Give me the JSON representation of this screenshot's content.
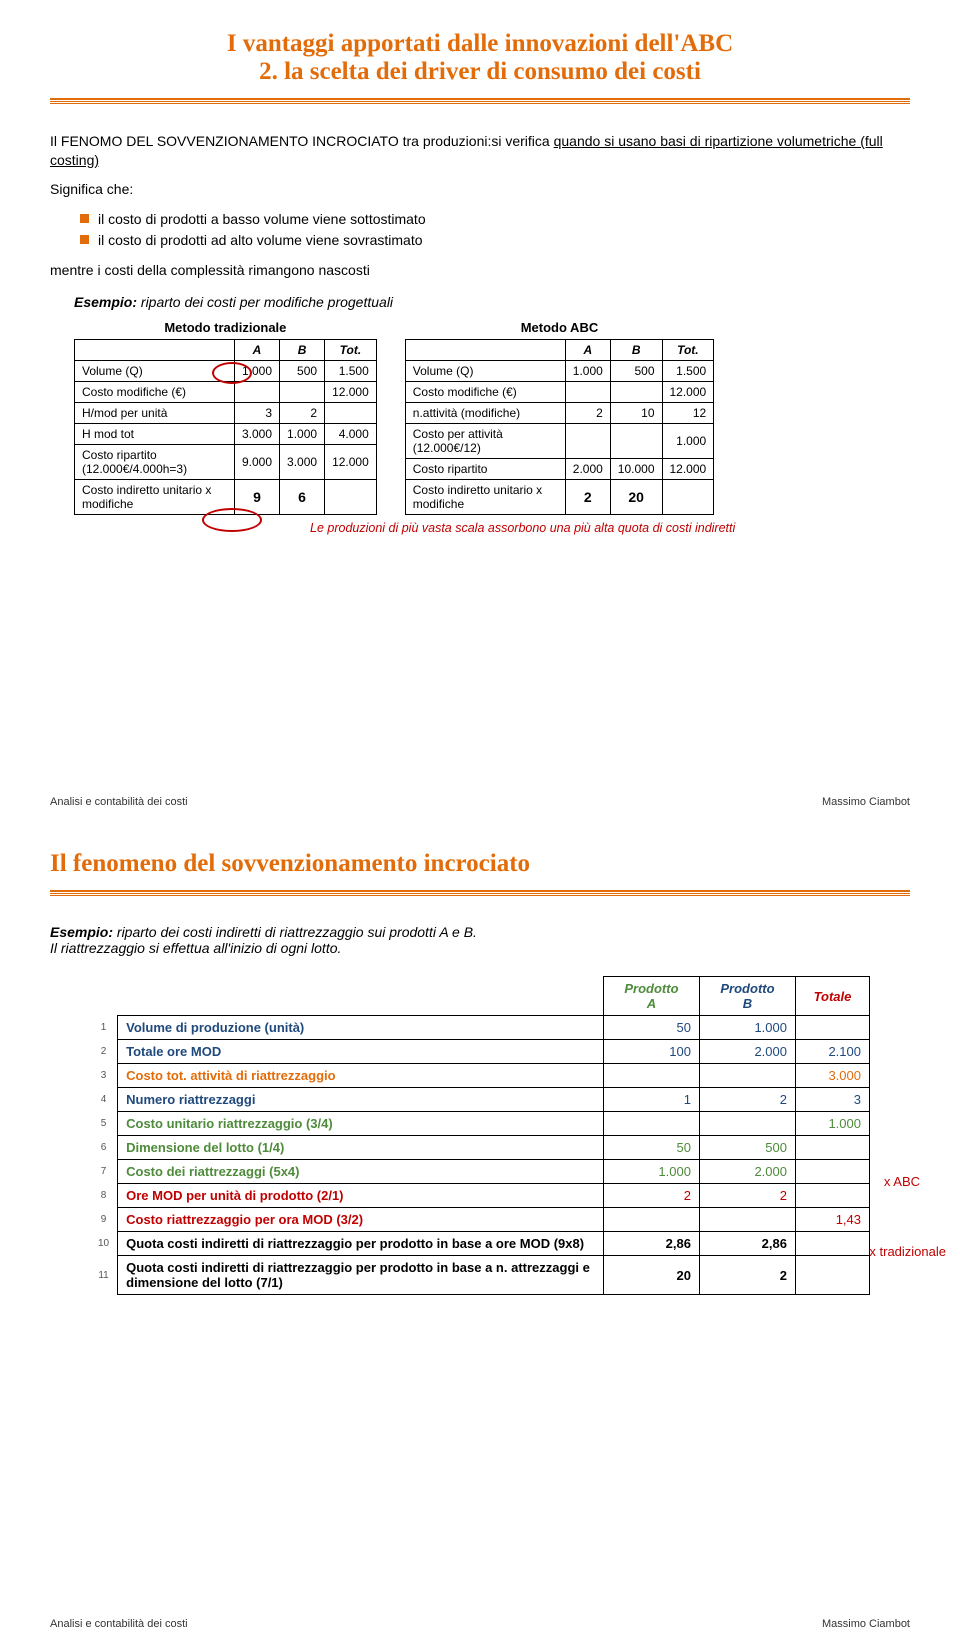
{
  "slide1": {
    "title_l1": "I vantaggi apportati dalle innovazioni dell'ABC",
    "title_l2": "2. la scelta dei driver di consumo dei costi",
    "intro_pre": "Il FENOMO DEL SOVVENZIONAMENTO INCROCIATO tra produzioni:si verifica ",
    "intro_underlined": "quando si usano basi di ripartizione volumetriche (full costing)",
    "significa": "Significa che:",
    "bullet1": "il costo di prodotti a basso volume viene sottostimato",
    "bullet2": "il costo di prodotti ad alto volume viene sovrastimato",
    "mentre": "mentre i costi della complessità rimangono nascosti",
    "esempio_label": "Esempio:",
    "esempio_text": " riparto dei costi per modifiche progettuali",
    "table_left": {
      "caption": "Metodo tradizionale",
      "header": [
        "",
        "A",
        "B",
        "Tot."
      ],
      "rows": [
        [
          "Volume (Q)",
          "1.000",
          "500",
          "1.500"
        ],
        [
          "Costo modifiche (€)",
          "",
          "",
          "12.000"
        ],
        [
          "H/mod per unità",
          "3",
          "2",
          ""
        ],
        [
          "H mod tot",
          "3.000",
          "1.000",
          "4.000"
        ],
        [
          "Costo ripartito (12.000€/4.000h=3)",
          "9.000",
          "3.000",
          "12.000"
        ],
        [
          "Costo indiretto unitario x modifiche",
          "9",
          "6",
          ""
        ]
      ]
    },
    "table_right": {
      "caption": "Metodo ABC",
      "header": [
        "",
        "A",
        "B",
        "Tot."
      ],
      "rows": [
        [
          "Volume (Q)",
          "1.000",
          "500",
          "1.500"
        ],
        [
          "Costo modifiche (€)",
          "",
          "",
          "12.000"
        ],
        [
          "n.attività (modifiche)",
          "2",
          "10",
          "12"
        ],
        [
          "Costo per attività (12.000€/12)",
          "",
          "",
          "1.000"
        ],
        [
          "Costo ripartito",
          "2.000",
          "10.000",
          "12.000"
        ],
        [
          "Costo indiretto unitario x modifiche",
          "2",
          "20",
          ""
        ]
      ]
    },
    "note": "Le produzioni di più vasta scala assorbono una più alta quota di costi indiretti",
    "footer_left": "Analisi e contabilità dei costi",
    "footer_right": "Massimo Ciambot"
  },
  "slide2": {
    "title": "Il fenomeno del sovvenzionamento incrociato",
    "esempio_label": "Esempio:",
    "esempio_l1": " riparto dei costi indiretti di riattrezzaggio sui prodotti A e B.",
    "esempio_l2": "Il riattrezzaggio si effettua all'inizio di ogni lotto.",
    "header": [
      "",
      "",
      "Prodotto A",
      "Prodotto B",
      "Totale"
    ],
    "header_colors": {
      "pA": "#4e8b3a",
      "pB": "#1f497d",
      "tot": "#c00000"
    },
    "rows": [
      {
        "n": "1",
        "desc": "Volume di produzione (unità)",
        "cls": "blue",
        "a": "50",
        "b": "1.000",
        "t": ""
      },
      {
        "n": "2",
        "desc": "Totale ore MOD",
        "cls": "blue",
        "a": "100",
        "b": "2.000",
        "t": "2.100"
      },
      {
        "n": "3",
        "desc": "Costo tot. attività di riattrezzaggio",
        "cls": "orange",
        "a": "",
        "b": "",
        "t": "3.000"
      },
      {
        "n": "4",
        "desc": "Numero riattrezzaggi",
        "cls": "blue",
        "a": "1",
        "b": "2",
        "t": "3"
      },
      {
        "n": "5",
        "desc": "Costo unitario riattrezzaggio (3/4)",
        "cls": "green",
        "a": "",
        "b": "",
        "t": "1.000"
      },
      {
        "n": "6",
        "desc": "Dimensione del lotto (1/4)",
        "cls": "green",
        "a": "50",
        "b": "500",
        "t": ""
      },
      {
        "n": "7",
        "desc": "Costo dei riattrezzaggi (5x4)",
        "cls": "green",
        "a": "1.000",
        "b": "2.000",
        "t": ""
      },
      {
        "n": "8",
        "desc": "Ore MOD per unità di prodotto (2/1)",
        "cls": "red",
        "a": "2",
        "b": "2",
        "t": ""
      },
      {
        "n": "9",
        "desc": "Costo riattrezzaggio per ora MOD (3/2)",
        "cls": "red",
        "a": "",
        "b": "",
        "t": "1,43"
      },
      {
        "n": "10",
        "desc": "Quota costi indiretti di riattrezzaggio per prodotto in base a ore MOD (9x8)",
        "cls": "",
        "a": "2,86",
        "b": "2,86",
        "t": ""
      },
      {
        "n": "11",
        "desc": "Quota costi indiretti di riattrezzaggio per prodotto in base a n. attrezzaggi e dimensione del lotto (7/1)",
        "cls": "",
        "a": "20",
        "b": "2",
        "t": ""
      }
    ],
    "side_abc": "x ABC",
    "side_trad": "x tradizionale",
    "footer_left": "Analisi e contabilità dei costi",
    "footer_right": "Massimo Ciambot"
  }
}
